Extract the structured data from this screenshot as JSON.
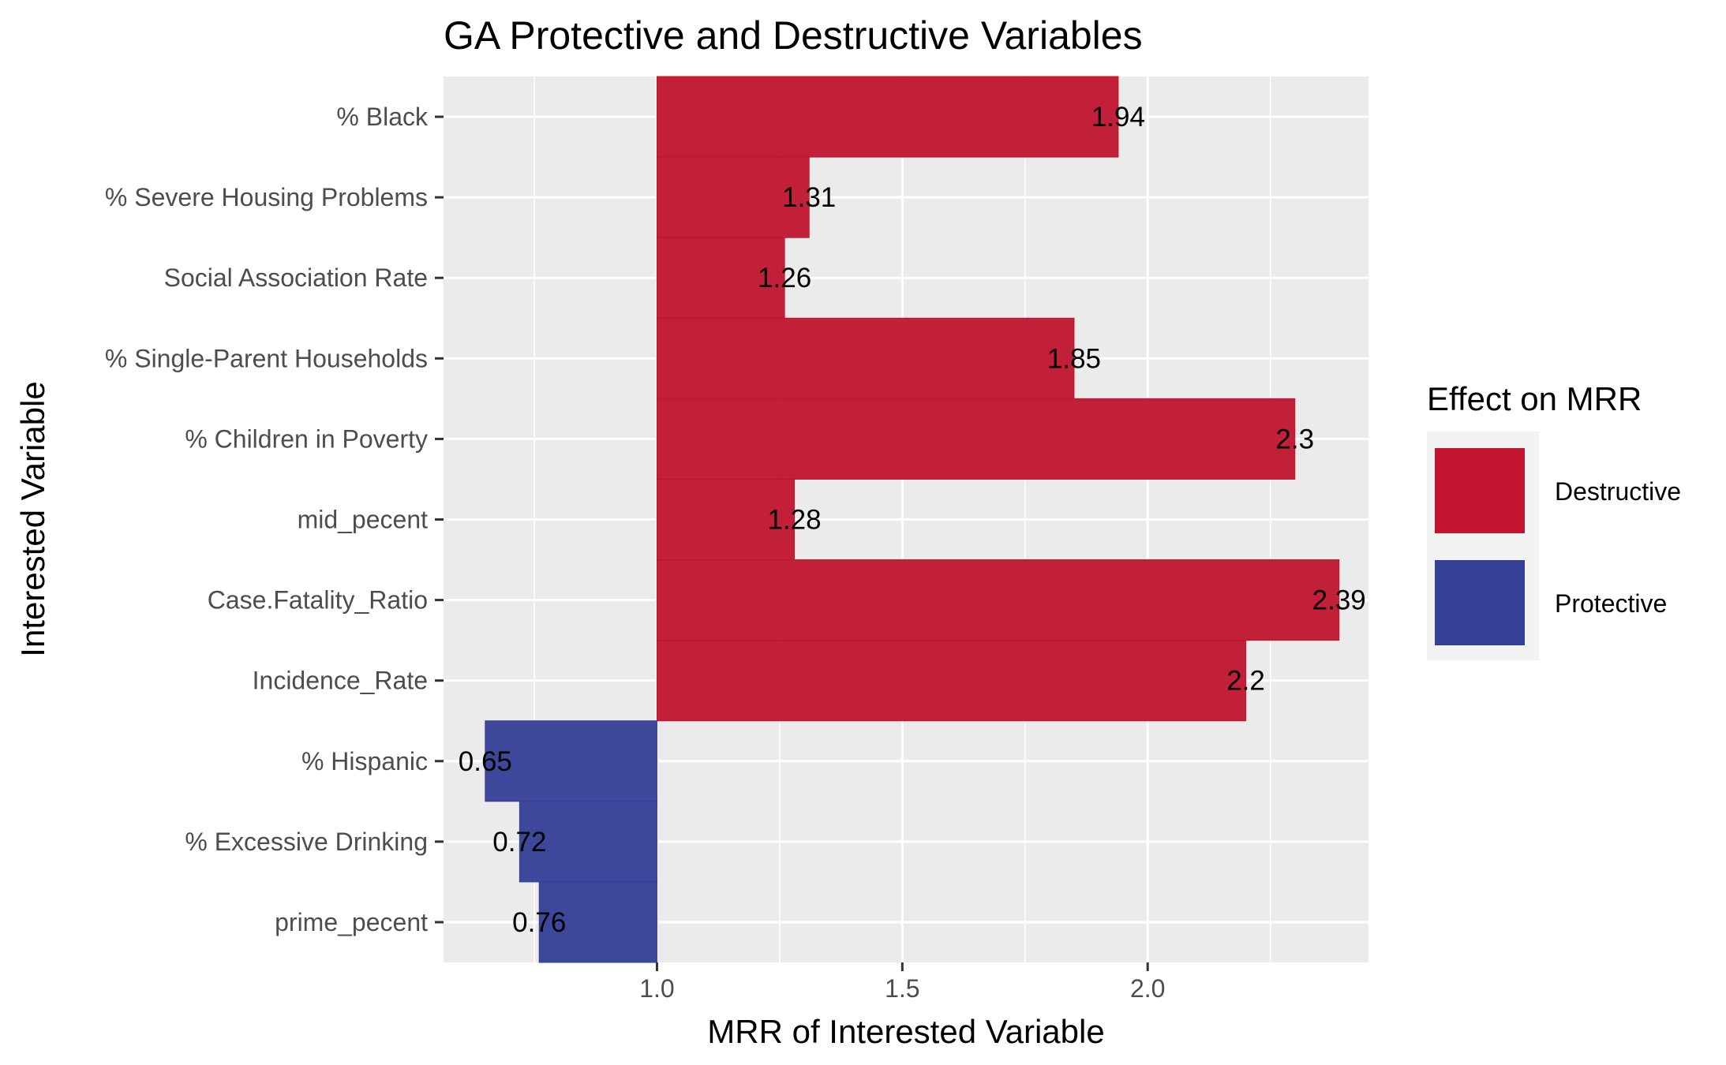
{
  "chart_data": {
    "type": "bar",
    "orientation": "horizontal",
    "title": "GA Protective and Destructive Variables",
    "xlabel": "MRR of Interested Variable",
    "ylabel": "Interested Variable",
    "baseline": 1.0,
    "xlim": [
      0.565,
      2.45
    ],
    "xticks": [
      1.0,
      1.5,
      2.0
    ],
    "xtick_labels": [
      "1.0",
      "1.5",
      "2.0"
    ],
    "grid": true,
    "legend_position": "right",
    "legend": {
      "title": "Effect on MRR",
      "entries": [
        {
          "label": "Destructive",
          "color": "#c0142f"
        },
        {
          "label": "Protective",
          "color": "#343f96"
        }
      ]
    },
    "categories": [
      "% Black",
      "% Severe Housing Problems",
      "Social Association Rate",
      "% Single-Parent Households",
      "% Children in Poverty",
      "mid_pecent",
      "Case.Fatality_Ratio",
      "Incidence_Rate",
      "% Hispanic",
      "% Excessive Drinking",
      "prime_pecent"
    ],
    "values": [
      1.94,
      1.31,
      1.26,
      1.85,
      2.3,
      1.28,
      2.39,
      2.2,
      0.65,
      0.72,
      0.76
    ],
    "value_labels": [
      "1.94",
      "1.31",
      "1.26",
      "1.85",
      "2.3",
      "1.28",
      "2.39",
      "2.2",
      "0.65",
      "0.72",
      "0.76"
    ],
    "effects": [
      "Destructive",
      "Destructive",
      "Destructive",
      "Destructive",
      "Destructive",
      "Destructive",
      "Destructive",
      "Destructive",
      "Protective",
      "Protective",
      "Protective"
    ]
  }
}
